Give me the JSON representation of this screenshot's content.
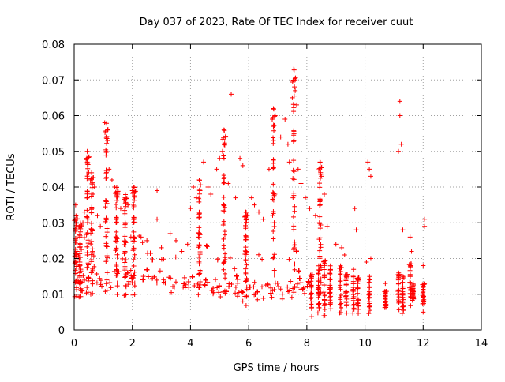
{
  "chart_data": {
    "type": "scatter",
    "title": "Day 037 of 2023, Rate Of TEC Index for receiver cuut",
    "xlabel": "GPS time / hours",
    "ylabel": "ROTI / TECUs",
    "xlim": [
      0,
      14
    ],
    "ylim": [
      0,
      0.08
    ],
    "xticks": [
      0,
      2,
      4,
      6,
      8,
      10,
      12,
      14
    ],
    "xtick_labels": [
      "0",
      "2",
      "4",
      "6",
      "8",
      "10",
      "12",
      "14"
    ],
    "yticks": [
      0,
      0.01,
      0.02,
      0.03,
      0.04,
      0.05,
      0.06,
      0.07,
      0.08
    ],
    "ytick_labels": [
      "0",
      "0.01",
      "0.02",
      "0.03",
      "0.04",
      "0.05",
      "0.06",
      "0.07",
      "0.08"
    ],
    "grid": true,
    "marker": "+",
    "color": "#ff0000",
    "series": [
      {
        "values": [
          [
            0.05,
            0.035
          ],
          [
            0.1,
            0.022
          ],
          [
            0.15,
            0.021
          ],
          [
            0.2,
            0.019
          ],
          [
            0.3,
            0.03
          ],
          [
            0.35,
            0.033
          ],
          [
            0.45,
            0.05
          ],
          [
            0.45,
            0.047
          ],
          [
            0.5,
            0.044
          ],
          [
            0.6,
            0.044
          ],
          [
            0.65,
            0.038
          ],
          [
            0.7,
            0.04
          ],
          [
            0.8,
            0.032
          ],
          [
            0.9,
            0.029
          ],
          [
            1.05,
            0.058
          ],
          [
            1.1,
            0.054
          ],
          [
            1.1,
            0.05
          ],
          [
            1.15,
            0.053
          ],
          [
            1.2,
            0.045
          ],
          [
            1.3,
            0.042
          ],
          [
            1.4,
            0.04
          ],
          [
            1.5,
            0.038
          ],
          [
            1.6,
            0.034
          ],
          [
            1.75,
            0.037
          ],
          [
            1.85,
            0.035
          ],
          [
            2.0,
            0.039
          ],
          [
            2.05,
            0.04
          ],
          [
            2.3,
            0.026
          ],
          [
            2.5,
            0.025
          ],
          [
            2.85,
            0.039
          ],
          [
            2.85,
            0.031
          ],
          [
            3.0,
            0.023
          ],
          [
            3.3,
            0.027
          ],
          [
            3.5,
            0.025
          ],
          [
            3.7,
            0.022
          ],
          [
            3.9,
            0.024
          ],
          [
            4.0,
            0.034
          ],
          [
            4.1,
            0.04
          ],
          [
            4.2,
            0.037
          ],
          [
            4.3,
            0.042
          ],
          [
            4.45,
            0.047
          ],
          [
            4.6,
            0.04
          ],
          [
            4.7,
            0.038
          ],
          [
            4.9,
            0.045
          ],
          [
            5.0,
            0.048
          ],
          [
            5.1,
            0.05
          ],
          [
            5.15,
            0.056
          ],
          [
            5.2,
            0.054
          ],
          [
            5.3,
            0.041
          ],
          [
            5.4,
            0.066
          ],
          [
            5.55,
            0.037
          ],
          [
            5.7,
            0.048
          ],
          [
            5.8,
            0.046
          ],
          [
            5.9,
            0.033
          ],
          [
            6.1,
            0.037
          ],
          [
            6.2,
            0.035
          ],
          [
            6.35,
            0.033
          ],
          [
            6.5,
            0.031
          ],
          [
            6.7,
            0.045
          ],
          [
            6.85,
            0.062
          ],
          [
            6.85,
            0.057
          ],
          [
            6.9,
            0.038
          ],
          [
            7.1,
            0.054
          ],
          [
            7.25,
            0.059
          ],
          [
            7.35,
            0.052
          ],
          [
            7.4,
            0.047
          ],
          [
            7.5,
            0.065
          ],
          [
            7.55,
            0.073
          ],
          [
            7.6,
            0.07
          ],
          [
            7.6,
            0.067
          ],
          [
            7.65,
            0.063
          ],
          [
            7.7,
            0.045
          ],
          [
            7.8,
            0.041
          ],
          [
            7.95,
            0.037
          ],
          [
            8.1,
            0.034
          ],
          [
            8.3,
            0.032
          ],
          [
            8.45,
            0.047
          ],
          [
            8.5,
            0.043
          ],
          [
            8.6,
            0.038
          ],
          [
            8.7,
            0.029
          ],
          [
            9.0,
            0.024
          ],
          [
            9.2,
            0.023
          ],
          [
            9.3,
            0.021
          ],
          [
            9.65,
            0.034
          ],
          [
            9.7,
            0.028
          ],
          [
            10.05,
            0.019
          ],
          [
            10.1,
            0.047
          ],
          [
            10.15,
            0.045
          ],
          [
            10.2,
            0.043
          ],
          [
            10.2,
            0.02
          ],
          [
            10.7,
            0.013
          ],
          [
            11.15,
            0.05
          ],
          [
            11.2,
            0.064
          ],
          [
            11.2,
            0.06
          ],
          [
            11.25,
            0.052
          ],
          [
            11.3,
            0.028
          ],
          [
            11.55,
            0.026
          ],
          [
            11.6,
            0.022
          ],
          [
            12.05,
            0.031
          ],
          [
            12.05,
            0.029
          ],
          [
            12.0,
            0.018
          ],
          [
            12.05,
            0.013
          ],
          [
            12.0,
            0.005
          ]
        ]
      }
    ],
    "band_columns": [
      [
        8.15,
        0.003,
        0.016
      ],
      [
        8.4,
        0.004,
        0.018
      ],
      [
        8.6,
        0.003,
        0.02
      ],
      [
        8.8,
        0.004,
        0.018
      ],
      [
        9.15,
        0.004,
        0.018
      ],
      [
        9.35,
        0.004,
        0.016
      ],
      [
        9.6,
        0.004,
        0.017
      ],
      [
        9.75,
        0.004,
        0.015
      ],
      [
        10.15,
        0.004,
        0.015
      ],
      [
        10.7,
        0.006,
        0.011
      ],
      [
        11.15,
        0.005,
        0.016
      ],
      [
        11.3,
        0.004,
        0.015
      ],
      [
        11.55,
        0.006,
        0.019
      ],
      [
        11.65,
        0.008,
        0.013
      ],
      [
        12.0,
        0.007,
        0.013
      ]
    ]
  }
}
